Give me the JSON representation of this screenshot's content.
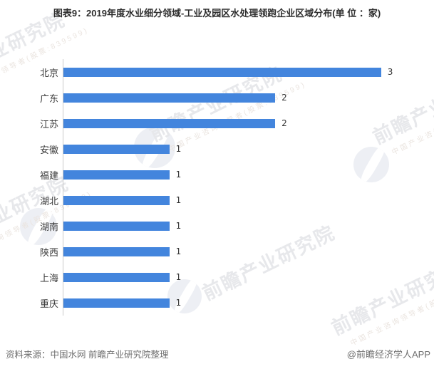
{
  "chart_data": {
    "type": "bar",
    "orientation": "horizontal",
    "title": "图表9：2019年度水业细分领域-工业及园区水处理领跑企业区域分布(单 位 ：家)",
    "categories": [
      "北京",
      "广东",
      "江苏",
      "安徽",
      "福建",
      "湖北",
      "湖南",
      "陕西",
      "上海",
      "重庆"
    ],
    "values": [
      3,
      2,
      2,
      1,
      1,
      1,
      1,
      1,
      1,
      1
    ],
    "xlabel": "",
    "ylabel": "",
    "xlim": [
      0,
      3.5
    ],
    "unit": "家",
    "grid": false,
    "legend_shown": false,
    "value_labels_shown": true
  },
  "footer": {
    "source": "资料来源：中国水网 前瞻产业研究院整理",
    "credit": "@前瞻经济学人APP"
  },
  "watermark": {
    "text": "前瞻产业研究院",
    "subtext": "中国产业咨询领导者(股票:839599)"
  },
  "colors": {
    "bar": "#4385dd",
    "title_text": "#2d2d2d",
    "category_label": "#3a3a3a",
    "value_label": "#333333",
    "axis_line": "#c9c9c9",
    "footer_text": "#6f6f6f",
    "watermark_text": "#e7e8eb",
    "background": "#ffffff"
  }
}
